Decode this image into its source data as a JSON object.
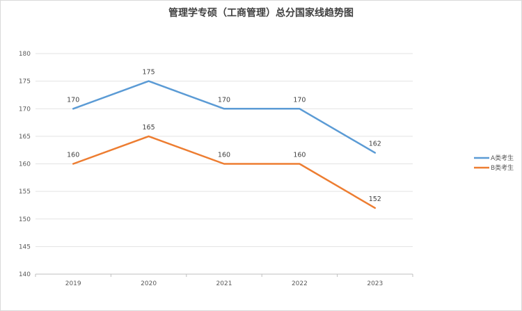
{
  "chart_data": {
    "type": "line",
    "title": "管理学专硕（工商管理）总分国家线趋势图",
    "categories": [
      "2019",
      "2020",
      "2021",
      "2022",
      "2023"
    ],
    "series": [
      {
        "name": "A类考生",
        "values": [
          170,
          175,
          170,
          170,
          162
        ],
        "color": "#5b9bd5"
      },
      {
        "name": "B类考生",
        "values": [
          160,
          165,
          160,
          160,
          152
        ],
        "color": "#ed7d31"
      }
    ],
    "ylim": [
      140,
      180
    ],
    "yticks": [
      140,
      145,
      150,
      155,
      160,
      165,
      170,
      175,
      180
    ],
    "grid": true,
    "legend": "right",
    "data_labels": true
  }
}
